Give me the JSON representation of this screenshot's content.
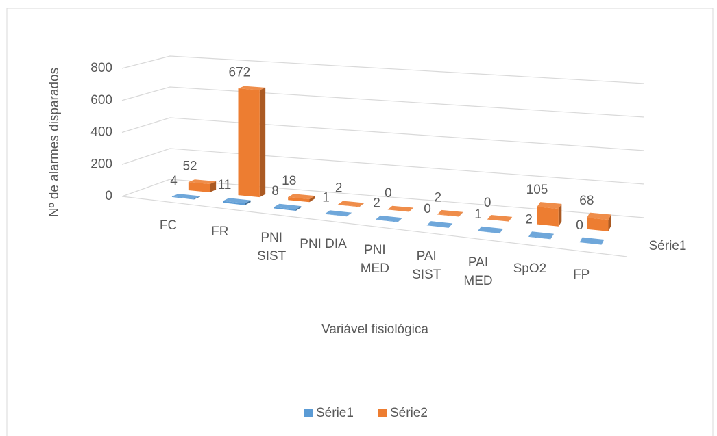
{
  "chart_data": {
    "type": "bar3d",
    "y_label": "Nº de alarmes disparados",
    "x_label": "Variável fisiológica",
    "categories": [
      "FC",
      "FR",
      "PNI SIST",
      "PNI DIA",
      "PNI MED",
      "PAI SIST",
      "PAI MED",
      "SpO2",
      "FP"
    ],
    "series": [
      {
        "name": "Série1",
        "color": "#5b9bd5",
        "values": [
          4,
          11,
          8,
          1,
          2,
          0,
          1,
          2,
          0
        ]
      },
      {
        "name": "Série2",
        "color": "#ed7d31",
        "values": [
          52,
          672,
          18,
          2,
          0,
          2,
          0,
          105,
          68
        ]
      }
    ],
    "ylim": [
      0,
      800
    ],
    "yticks": [
      0,
      200,
      400,
      600,
      800
    ],
    "grid": true,
    "legend": "bottom"
  }
}
